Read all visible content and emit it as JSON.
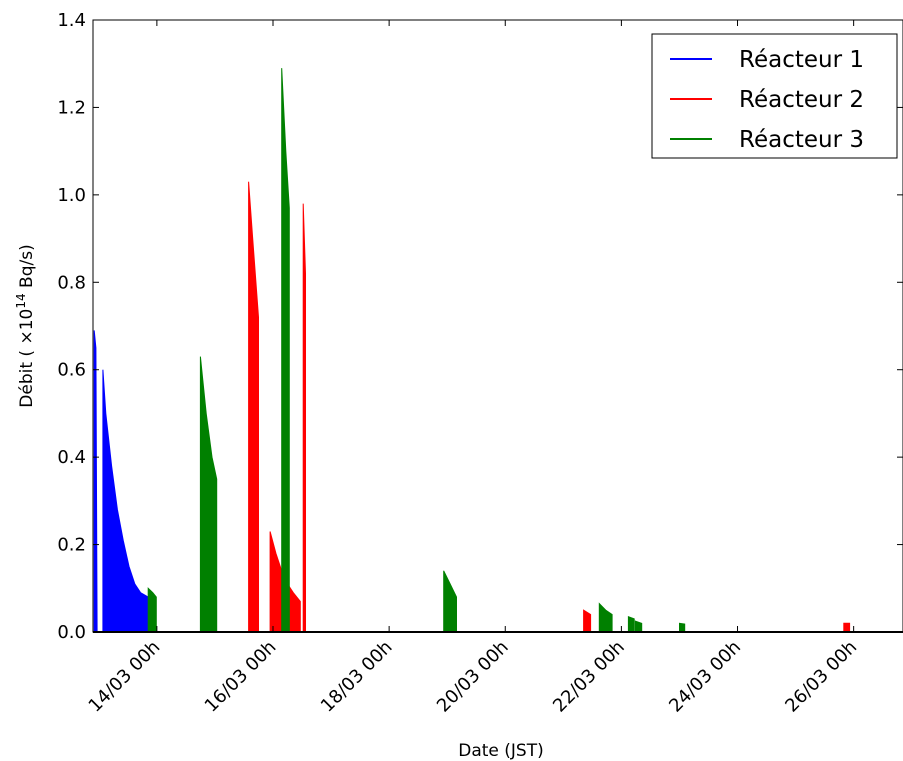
{
  "chart_data": {
    "type": "area",
    "title": "",
    "xlabel": "Date (JST)",
    "ylabel_text": "Débit ( ×10",
    "ylabel_exp": "14",
    "ylabel_unit": " Bq/s)",
    "ylim": [
      0,
      1.4
    ],
    "xlim_days": [
      12.9,
      26.85
    ],
    "y_ticks": [
      {
        "value": 0.0,
        "label": "0.0"
      },
      {
        "value": 0.2,
        "label": "0.2"
      },
      {
        "value": 0.4,
        "label": "0.4"
      },
      {
        "value": 0.6,
        "label": "0.6"
      },
      {
        "value": 0.8,
        "label": "0.8"
      },
      {
        "value": 1.0,
        "label": "1.0"
      },
      {
        "value": 1.2,
        "label": "1.2"
      },
      {
        "value": 1.4,
        "label": "1.4"
      }
    ],
    "x_ticks": [
      {
        "value": 14,
        "label": "14/03 00h"
      },
      {
        "value": 16,
        "label": "16/03 00h"
      },
      {
        "value": 18,
        "label": "18/03 00h"
      },
      {
        "value": 20,
        "label": "20/03 00h"
      },
      {
        "value": 22,
        "label": "22/03 00h"
      },
      {
        "value": 24,
        "label": "24/03 00h"
      },
      {
        "value": 26,
        "label": "26/03 00h"
      }
    ],
    "legend": {
      "position": "top-right"
    },
    "series": [
      {
        "name": "Réacteur 1",
        "color": "#0000ff",
        "segments": [
          [
            [
              12.92,
              0.0
            ],
            [
              12.92,
              0.69
            ],
            [
              12.95,
              0.65
            ],
            [
              12.97,
              0.0
            ]
          ],
          [
            [
              13.07,
              0.0
            ],
            [
              13.07,
              0.6
            ],
            [
              13.12,
              0.5
            ],
            [
              13.22,
              0.38
            ],
            [
              13.32,
              0.28
            ],
            [
              13.42,
              0.21
            ],
            [
              13.52,
              0.15
            ],
            [
              13.62,
              0.11
            ],
            [
              13.72,
              0.09
            ],
            [
              13.85,
              0.08
            ],
            [
              13.85,
              0.0
            ]
          ]
        ]
      },
      {
        "name": "Réacteur 2",
        "color": "#ff0000",
        "segments": [
          [
            [
              15.58,
              0.0
            ],
            [
              15.58,
              1.03
            ],
            [
              15.65,
              0.9
            ],
            [
              15.75,
              0.72
            ],
            [
              15.75,
              0.0
            ]
          ],
          [
            [
              15.95,
              0.0
            ],
            [
              15.95,
              0.23
            ],
            [
              16.05,
              0.18
            ],
            [
              16.15,
              0.14
            ],
            [
              16.25,
              0.11
            ],
            [
              16.35,
              0.09
            ],
            [
              16.47,
              0.07
            ],
            [
              16.47,
              0.0
            ]
          ],
          [
            [
              16.52,
              0.0
            ],
            [
              16.52,
              0.98
            ],
            [
              16.56,
              0.82
            ],
            [
              16.56,
              0.0
            ]
          ],
          [
            [
              21.35,
              0.0
            ],
            [
              21.35,
              0.05
            ],
            [
              21.47,
              0.04
            ],
            [
              21.47,
              0.0
            ]
          ],
          [
            [
              25.83,
              0.0
            ],
            [
              25.83,
              0.02
            ],
            [
              25.93,
              0.02
            ],
            [
              25.93,
              0.0
            ]
          ]
        ]
      },
      {
        "name": "Réacteur 3",
        "color": "#008000",
        "segments": [
          [
            [
              13.85,
              0.0
            ],
            [
              13.85,
              0.1
            ],
            [
              13.93,
              0.09
            ],
            [
              13.99,
              0.08
            ],
            [
              13.99,
              0.0
            ]
          ],
          [
            [
              14.75,
              0.0
            ],
            [
              14.75,
              0.63
            ],
            [
              14.85,
              0.5
            ],
            [
              14.95,
              0.4
            ],
            [
              15.03,
              0.35
            ],
            [
              15.03,
              0.0
            ]
          ],
          [
            [
              16.15,
              0.0
            ],
            [
              16.15,
              1.29
            ],
            [
              16.22,
              1.1
            ],
            [
              16.28,
              0.97
            ],
            [
              16.28,
              0.0
            ]
          ],
          [
            [
              18.94,
              0.0
            ],
            [
              18.94,
              0.14
            ],
            [
              19.05,
              0.11
            ],
            [
              19.16,
              0.08
            ],
            [
              19.16,
              0.0
            ]
          ],
          [
            [
              21.62,
              0.0
            ],
            [
              21.62,
              0.065
            ],
            [
              21.73,
              0.05
            ],
            [
              21.84,
              0.04
            ],
            [
              21.84,
              0.0
            ]
          ],
          [
            [
              22.12,
              0.0
            ],
            [
              22.12,
              0.035
            ],
            [
              22.22,
              0.03
            ],
            [
              22.22,
              0.0
            ]
          ],
          [
            [
              22.24,
              0.0
            ],
            [
              22.24,
              0.025
            ],
            [
              22.35,
              0.02
            ],
            [
              22.35,
              0.0
            ]
          ],
          [
            [
              23.0,
              0.0
            ],
            [
              23.0,
              0.02
            ],
            [
              23.09,
              0.018
            ],
            [
              23.09,
              0.0
            ]
          ]
        ]
      }
    ]
  }
}
